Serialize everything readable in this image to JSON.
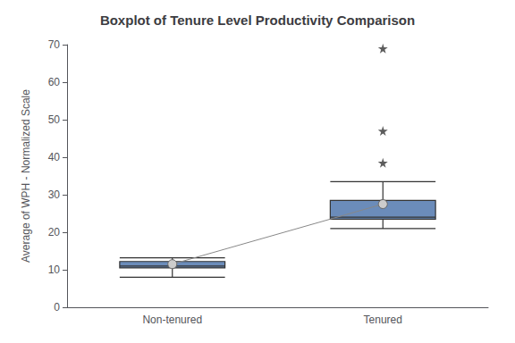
{
  "chart_data": {
    "type": "boxplot",
    "title": "Boxplot of Tenure Level Productivity Comparison",
    "ylabel": "Average of WPH - Normalized Scale",
    "categories": [
      "Non-tenured",
      "Tenured"
    ],
    "boxes": [
      {
        "whisker_low": 8.0,
        "q1": 10.5,
        "median": 11.0,
        "q3": 12.2,
        "whisker_high": 13.2
      },
      {
        "whisker_low": 21.0,
        "q1": 23.5,
        "median": 24.0,
        "q3": 28.5,
        "whisker_high": 33.5
      }
    ],
    "means": [
      11.5,
      27.5
    ],
    "outliers": [
      [],
      [
        38.5,
        47.0,
        69.0
      ]
    ],
    "color": "#6b8cba",
    "ylim": [
      0,
      70
    ],
    "yticks": [
      0,
      10,
      20,
      30,
      40,
      50,
      60,
      70
    ],
    "grid": false
  }
}
